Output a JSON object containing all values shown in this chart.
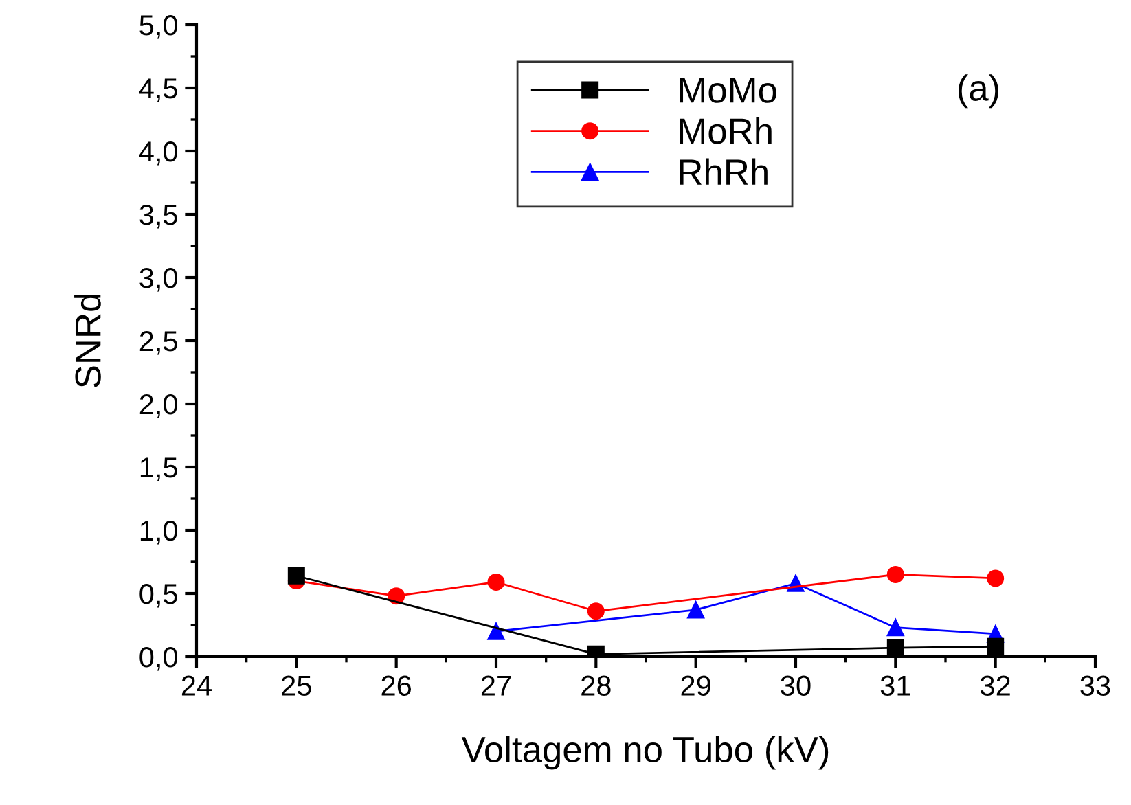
{
  "chart_data": {
    "type": "line",
    "xlabel": "Voltagem no Tubo (kV)",
    "ylabel": "SNRd",
    "xlim": [
      24,
      33
    ],
    "ylim": [
      0,
      5
    ],
    "xticks": [
      24,
      25,
      26,
      27,
      28,
      29,
      30,
      31,
      32,
      33
    ],
    "yticks": [
      {
        "value": 0,
        "label": "0,0"
      },
      {
        "value": 0.5,
        "label": "0,5"
      },
      {
        "value": 1,
        "label": "1,0"
      },
      {
        "value": 1.5,
        "label": "1,5"
      },
      {
        "value": 2,
        "label": "2,0"
      },
      {
        "value": 2.5,
        "label": "2,5"
      },
      {
        "value": 3,
        "label": "3,0"
      },
      {
        "value": 3.5,
        "label": "3,5"
      },
      {
        "value": 4,
        "label": "4,0"
      },
      {
        "value": 4.5,
        "label": "4,5"
      },
      {
        "value": 5,
        "label": "5,0"
      }
    ],
    "legend": "top",
    "grid": false,
    "annotations": [
      "(a)"
    ],
    "series": [
      {
        "name": "MoMo",
        "color": "#000000",
        "marker": "square",
        "x": [
          25,
          28,
          31,
          32
        ],
        "values": [
          0.64,
          0.02,
          0.07,
          0.08
        ]
      },
      {
        "name": "MoRh",
        "color": "#ff0000",
        "marker": "circle",
        "x": [
          25,
          26,
          27,
          28,
          31,
          32
        ],
        "values": [
          0.6,
          0.48,
          0.59,
          0.36,
          0.65,
          0.62
        ]
      },
      {
        "name": "RhRh",
        "color": "#0000ff",
        "marker": "triangle",
        "x": [
          27,
          29,
          30,
          31,
          32
        ],
        "values": [
          0.2,
          0.37,
          0.58,
          0.23,
          0.18
        ]
      }
    ]
  }
}
